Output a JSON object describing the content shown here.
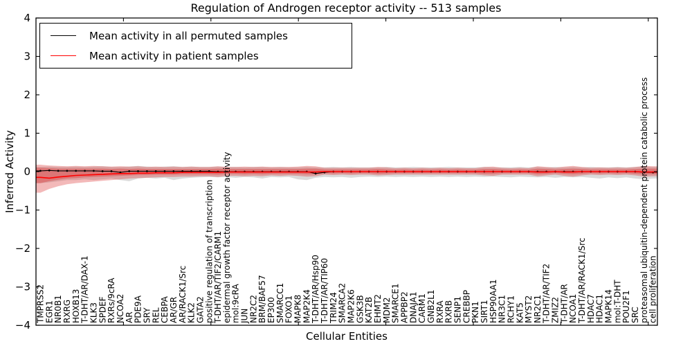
{
  "title": "Regulation of Androgen receptor activity -- 513 samples",
  "legend": {
    "items": [
      {
        "label": "Mean activity in all permuted samples",
        "color": "#000000"
      },
      {
        "label": "Mean activity in patient samples",
        "color": "#ff0000"
      }
    ]
  },
  "chart_data": {
    "type": "line",
    "title": "Regulation of Androgen receptor activity -- 513 samples",
    "xlabel": "Cellular Entities",
    "ylabel": "Inferred Activity",
    "ylim": [
      -4,
      4
    ],
    "yticks": [
      -4,
      -3,
      -2,
      -1,
      0,
      1,
      2,
      3,
      4
    ],
    "grid": false,
    "legend_position": "upper left",
    "categories": [
      "TMPRSS2",
      "EGR1",
      "NR0B1",
      "RXRG",
      "HOXB13",
      "T-DHT/AR/DAX-1",
      "KLK3",
      "SPDEF",
      "RXRs/9cRA",
      "NCOA2",
      "AR",
      "PDE9A",
      "SRY",
      "REL",
      "CEBPA",
      "AR/GR",
      "AR/RACK1/Src",
      "KLK2",
      "GATA2",
      "positive regulation of transcription",
      "T-DHT/AR/TIF2/CARM1",
      "epidermal growth factor receptor activity",
      "mol:9cRA",
      "JUN",
      "NR2C2",
      "BRM/BAF57",
      "EP300",
      "SMARCC1",
      "FOXO1",
      "MAPK8",
      "MAP2K4",
      "T-DHT/AR/Hsp90",
      "T-DHT/AR/TIP60",
      "TRIM24",
      "SMARCA2",
      "MAP2K6",
      "GSK3B",
      "KAT2B",
      "EHMT2",
      "MDM2",
      "SMARCE1",
      "APPBP2",
      "DNAJA1",
      "CARM1",
      "GNB2L1",
      "RXRA",
      "RXRB",
      "SENP1",
      "CREBBP",
      "PKN1",
      "SIRT1",
      "HSP90AA1",
      "NR3C1",
      "RCHY1",
      "KAT5",
      "MYST2",
      "NR2C1",
      "T-DHT/AR/TIF2",
      "ZMIZ2",
      "T-DHT/AR",
      "NCOA1",
      "T-DHT/AR/RACK1/Src",
      "HDAC7",
      "HDAC1",
      "MAPK14",
      "mol:T-DHT",
      "POU2F1",
      "SRC",
      "proteasomal ubiquitin-dependent protein catabolic process",
      "cell proliferation"
    ],
    "series": [
      {
        "name": "Mean activity in all permuted samples",
        "color": "#000000",
        "marker": "dot",
        "values": [
          0.02,
          0.03,
          0.02,
          0.02,
          0.02,
          0.02,
          0.02,
          0.01,
          0.01,
          -0.02,
          0.01,
          0.01,
          0.01,
          0.01,
          0.01,
          0.01,
          0.01,
          0.01,
          0.01,
          0.01,
          0.0,
          0.0,
          0.0,
          0.0,
          0.0,
          0.0,
          0.0,
          0.0,
          0.0,
          0.0,
          0.0,
          -0.05,
          -0.02,
          0.0,
          0.0,
          0.0,
          0.0,
          0.0,
          0.0,
          0.0,
          0.0,
          0.0,
          0.0,
          0.0,
          0.0,
          0.0,
          0.0,
          0.0,
          0.0,
          0.0,
          0.0,
          0.0,
          0.0,
          0.0,
          0.0,
          0.0,
          0.0,
          0.0,
          0.0,
          0.0,
          0.0,
          0.0,
          0.0,
          0.0,
          0.0,
          0.0,
          0.0,
          0.0,
          -0.02,
          -0.02
        ]
      },
      {
        "name": "Mean activity in patient samples",
        "color": "#ff0000",
        "marker": "none",
        "values": [
          -0.15,
          -0.17,
          -0.14,
          -0.12,
          -0.1,
          -0.09,
          -0.08,
          -0.07,
          -0.06,
          -0.05,
          -0.05,
          -0.04,
          -0.04,
          -0.03,
          -0.03,
          -0.03,
          -0.02,
          -0.02,
          -0.02,
          -0.02,
          -0.02,
          -0.01,
          -0.01,
          -0.01,
          -0.01,
          -0.01,
          -0.01,
          -0.01,
          -0.01,
          -0.01,
          -0.01,
          -0.01,
          0.0,
          0.0,
          0.0,
          0.0,
          0.0,
          0.0,
          0.0,
          0.0,
          0.0,
          0.0,
          0.0,
          0.0,
          0.0,
          0.0,
          0.0,
          0.0,
          0.0,
          0.0,
          0.0,
          0.0,
          0.0,
          0.0,
          0.0,
          0.0,
          -0.01,
          -0.01,
          0.0,
          -0.01,
          -0.01,
          0.0,
          0.0,
          0.0,
          0.0,
          0.0,
          0.0,
          0.0,
          -0.01,
          -0.01
        ]
      }
    ],
    "bands": [
      {
        "name": "permuted-range",
        "color": "#8f8f8f",
        "opacity": 0.32,
        "upper": [
          0.12,
          0.13,
          0.12,
          0.12,
          0.13,
          0.12,
          0.13,
          0.14,
          0.12,
          0.12,
          0.13,
          0.15,
          0.13,
          0.12,
          0.13,
          0.14,
          0.12,
          0.13,
          0.12,
          0.12,
          0.13,
          0.12,
          0.12,
          0.11,
          0.12,
          0.12,
          0.11,
          0.12,
          0.11,
          0.11,
          0.12,
          0.11,
          0.11,
          0.12,
          0.11,
          0.12,
          0.11,
          0.11,
          0.11,
          0.12,
          0.11,
          0.11,
          0.12,
          0.11,
          0.11,
          0.11,
          0.12,
          0.11,
          0.11,
          0.11,
          0.12,
          0.11,
          0.11,
          0.11,
          0.12,
          0.11,
          0.12,
          0.11,
          0.12,
          0.11,
          0.12,
          0.11,
          0.12,
          0.11,
          0.11,
          0.12,
          0.11,
          0.12,
          0.13,
          0.12
        ],
        "lower": [
          -0.3,
          -0.28,
          -0.25,
          -0.22,
          -0.22,
          -0.2,
          -0.22,
          -0.2,
          -0.18,
          -0.22,
          -0.25,
          -0.18,
          -0.16,
          -0.18,
          -0.16,
          -0.22,
          -0.18,
          -0.16,
          -0.15,
          -0.14,
          -0.15,
          -0.14,
          -0.16,
          -0.14,
          -0.15,
          -0.18,
          -0.14,
          -0.15,
          -0.14,
          -0.2,
          -0.22,
          -0.16,
          -0.14,
          -0.15,
          -0.14,
          -0.16,
          -0.14,
          -0.13,
          -0.14,
          -0.13,
          -0.14,
          -0.13,
          -0.14,
          -0.13,
          -0.14,
          -0.13,
          -0.14,
          -0.13,
          -0.14,
          -0.13,
          -0.14,
          -0.13,
          -0.14,
          -0.15,
          -0.13,
          -0.14,
          -0.15,
          -0.14,
          -0.16,
          -0.14,
          -0.15,
          -0.14,
          -0.16,
          -0.18,
          -0.15,
          -0.17,
          -0.15,
          -0.18,
          -0.2,
          -0.18
        ]
      },
      {
        "name": "patient-range-outer",
        "color": "#dd3333",
        "opacity": 0.34,
        "upper": [
          0.18,
          0.16,
          0.15,
          0.14,
          0.15,
          0.14,
          0.15,
          0.14,
          0.13,
          0.14,
          0.13,
          0.14,
          0.12,
          0.13,
          0.12,
          0.13,
          0.12,
          0.13,
          0.12,
          0.12,
          0.14,
          0.12,
          0.12,
          0.13,
          0.12,
          0.13,
          0.12,
          0.12,
          0.12,
          0.13,
          0.15,
          0.14,
          0.1,
          0.1,
          0.1,
          0.1,
          0.1,
          0.1,
          0.12,
          0.11,
          0.09,
          0.1,
          0.09,
          0.1,
          0.09,
          0.1,
          0.09,
          0.1,
          0.09,
          0.09,
          0.12,
          0.13,
          0.1,
          0.09,
          0.1,
          0.09,
          0.14,
          0.12,
          0.1,
          0.13,
          0.15,
          0.12,
          0.1,
          0.11,
          0.1,
          0.11,
          0.1,
          0.12,
          0.15,
          0.14
        ],
        "lower": [
          -0.55,
          -0.45,
          -0.38,
          -0.33,
          -0.3,
          -0.28,
          -0.26,
          -0.24,
          -0.22,
          -0.2,
          -0.18,
          -0.17,
          -0.16,
          -0.15,
          -0.14,
          -0.14,
          -0.13,
          -0.13,
          -0.12,
          -0.12,
          -0.14,
          -0.11,
          -0.11,
          -0.12,
          -0.11,
          -0.12,
          -0.1,
          -0.11,
          -0.1,
          -0.11,
          -0.13,
          -0.12,
          -0.08,
          -0.09,
          -0.08,
          -0.09,
          -0.08,
          -0.08,
          -0.1,
          -0.09,
          -0.08,
          -0.08,
          -0.08,
          -0.08,
          -0.08,
          -0.08,
          -0.08,
          -0.08,
          -0.08,
          -0.08,
          -0.1,
          -0.11,
          -0.08,
          -0.08,
          -0.08,
          -0.08,
          -0.12,
          -0.1,
          -0.08,
          -0.11,
          -0.13,
          -0.1,
          -0.08,
          -0.09,
          -0.08,
          -0.09,
          -0.08,
          -0.1,
          -0.13,
          -0.12
        ]
      },
      {
        "name": "patient-range-inner",
        "color": "#dd3333",
        "opacity": 0.38,
        "upper": [
          0.1,
          0.09,
          0.08,
          0.08,
          0.08,
          0.08,
          0.08,
          0.08,
          0.07,
          0.08,
          0.07,
          0.08,
          0.07,
          0.07,
          0.07,
          0.07,
          0.07,
          0.07,
          0.07,
          0.07,
          0.08,
          0.07,
          0.07,
          0.07,
          0.07,
          0.07,
          0.07,
          0.07,
          0.07,
          0.07,
          0.08,
          0.08,
          0.06,
          0.06,
          0.06,
          0.06,
          0.06,
          0.06,
          0.07,
          0.06,
          0.05,
          0.06,
          0.05,
          0.06,
          0.05,
          0.06,
          0.05,
          0.06,
          0.05,
          0.05,
          0.07,
          0.07,
          0.06,
          0.05,
          0.06,
          0.05,
          0.08,
          0.07,
          0.06,
          0.07,
          0.08,
          0.07,
          0.06,
          0.06,
          0.06,
          0.06,
          0.06,
          0.07,
          0.08,
          0.08
        ],
        "lower": [
          -0.3,
          -0.25,
          -0.21,
          -0.18,
          -0.17,
          -0.15,
          -0.14,
          -0.13,
          -0.12,
          -0.11,
          -0.1,
          -0.09,
          -0.09,
          -0.08,
          -0.08,
          -0.08,
          -0.07,
          -0.07,
          -0.07,
          -0.07,
          -0.08,
          -0.06,
          -0.06,
          -0.07,
          -0.06,
          -0.07,
          -0.06,
          -0.06,
          -0.06,
          -0.06,
          -0.07,
          -0.07,
          -0.04,
          -0.05,
          -0.04,
          -0.05,
          -0.04,
          -0.04,
          -0.06,
          -0.05,
          -0.04,
          -0.04,
          -0.04,
          -0.04,
          -0.04,
          -0.04,
          -0.04,
          -0.04,
          -0.04,
          -0.04,
          -0.06,
          -0.06,
          -0.04,
          -0.04,
          -0.04,
          -0.04,
          -0.07,
          -0.06,
          -0.04,
          -0.06,
          -0.07,
          -0.06,
          -0.04,
          -0.05,
          -0.04,
          -0.05,
          -0.04,
          -0.06,
          -0.07,
          -0.07
        ]
      }
    ]
  }
}
